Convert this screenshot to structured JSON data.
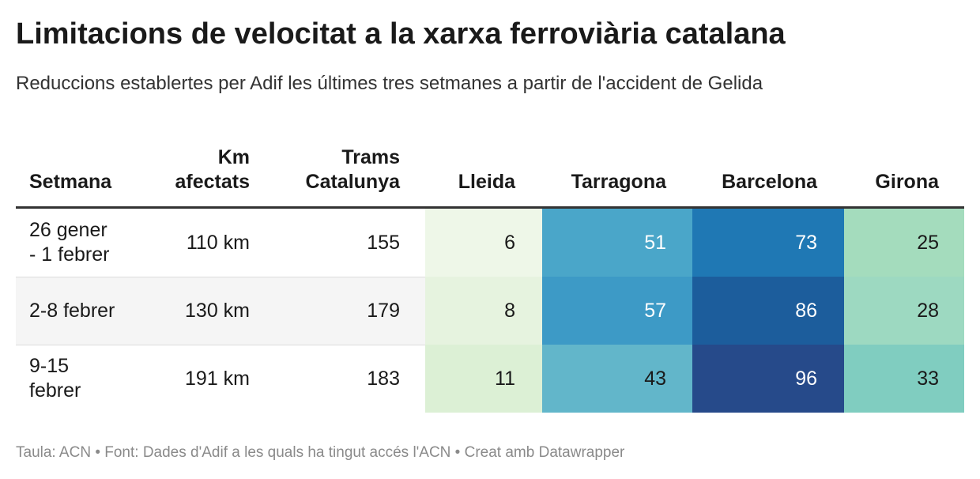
{
  "header": {
    "title": "Limitacions de velocitat a la xarxa ferroviària catalana",
    "subtitle": "Reduccions establertes per Adif les últimes tres setmanes a partir de l'accident de Gelida"
  },
  "table": {
    "columns": [
      "Setmana",
      "Km afectats",
      "Trams Catalunya",
      "Lleida",
      "Tarragona",
      "Barcelona",
      "Girona"
    ],
    "rows": [
      [
        "26 gener - 1 febrer",
        "110 km",
        155,
        6,
        51,
        73,
        25
      ],
      [
        "2-8 febrer",
        "130 km",
        179,
        8,
        57,
        86,
        28
      ],
      [
        "9-15 febrer",
        "191 km",
        183,
        11,
        43,
        96,
        33
      ]
    ],
    "cell_colors": [
      [
        "#eef7e8",
        "#4aa6c9",
        "#1f78b4",
        "#a4dcbd"
      ],
      [
        "#e6f3df",
        "#3d9ac6",
        "#1c5d9c",
        "#9dd9c1"
      ],
      [
        "#dcf0d5",
        "#62b6ca",
        "#264a8a",
        "#80cdc0"
      ]
    ]
  },
  "footer": "Taula: ACN • Font: Dades d'Adif a les quals ha tingut accés l'ACN • Creat amb Datawrapper"
}
